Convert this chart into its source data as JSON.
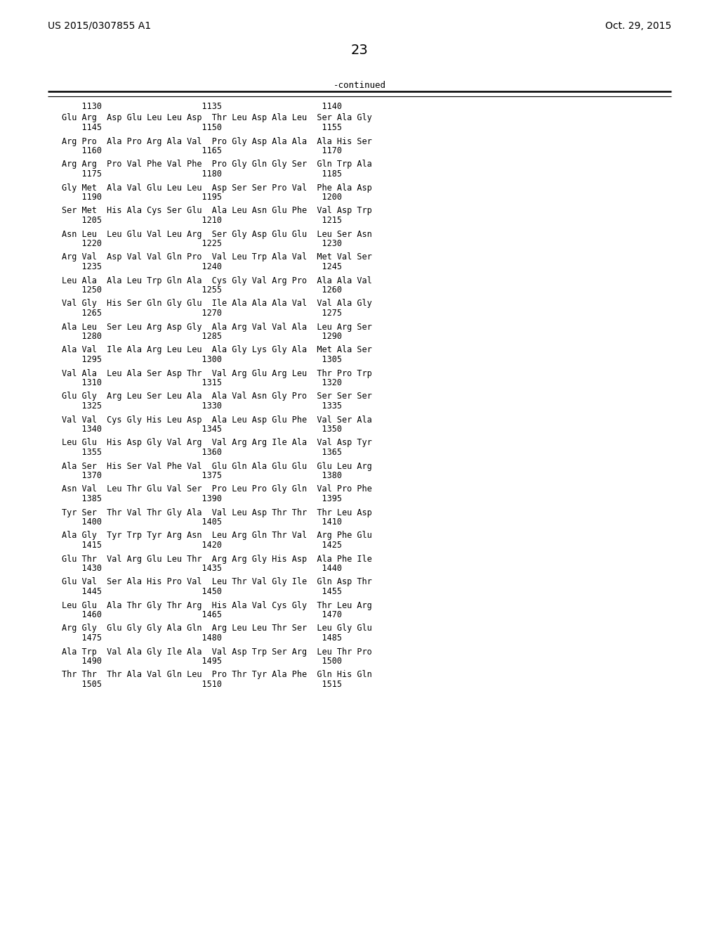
{
  "header_left": "US 2015/0307855 A1",
  "header_right": "Oct. 29, 2015",
  "page_number": "23",
  "continued_label": "-continued",
  "background_color": "#ffffff",
  "text_color": "#000000",
  "font_size": 8.5,
  "header_font_size": 10,
  "page_num_font_size": 14,
  "sequence_groups": [
    {
      "seq": "Glu Arg  Asp Glu Leu Leu Asp  Thr Leu Asp Ala Leu  Ser Ala Gly",
      "num": "    1145                    1150                    1155"
    },
    {
      "seq": "Arg Pro  Ala Pro Arg Ala Val  Pro Gly Asp Ala Ala  Ala His Ser",
      "num": "    1160                    1165                    1170"
    },
    {
      "seq": "Arg Arg  Pro Val Phe Val Phe  Pro Gly Gln Gly Ser  Gln Trp Ala",
      "num": "    1175                    1180                    1185"
    },
    {
      "seq": "Gly Met  Ala Val Glu Leu Leu  Asp Ser Ser Pro Val  Phe Ala Asp",
      "num": "    1190                    1195                    1200"
    },
    {
      "seq": "Ser Met  His Ala Cys Ser Glu  Ala Leu Asn Glu Phe  Val Asp Trp",
      "num": "    1205                    1210                    1215"
    },
    {
      "seq": "Asn Leu  Leu Glu Val Leu Arg  Ser Gly Asp Glu Glu  Leu Ser Asn",
      "num": "    1220                    1225                    1230"
    },
    {
      "seq": "Arg Val  Asp Val Val Gln Pro  Val Leu Trp Ala Val  Met Val Ser",
      "num": "    1235                    1240                    1245"
    },
    {
      "seq": "Leu Ala  Ala Leu Trp Gln Ala  Cys Gly Val Arg Pro  Ala Ala Val",
      "num": "    1250                    1255                    1260"
    },
    {
      "seq": "Val Gly  His Ser Gln Gly Glu  Ile Ala Ala Ala Val  Val Ala Gly",
      "num": "    1265                    1270                    1275"
    },
    {
      "seq": "Ala Leu  Ser Leu Arg Asp Gly  Ala Arg Val Val Ala  Leu Arg Ser",
      "num": "    1280                    1285                    1290"
    },
    {
      "seq": "Ala Val  Ile Ala Arg Leu Leu  Ala Gly Lys Gly Ala  Met Ala Ser",
      "num": "    1295                    1300                    1305"
    },
    {
      "seq": "Val Ala  Leu Ala Ser Asp Thr  Val Arg Glu Arg Leu  Thr Pro Trp",
      "num": "    1310                    1315                    1320"
    },
    {
      "seq": "Glu Gly  Arg Leu Ser Leu Ala  Ala Val Asn Gly Pro  Ser Ser Ser",
      "num": "    1325                    1330                    1335"
    },
    {
      "seq": "Val Val  Cys Gly His Leu Asp  Ala Leu Asp Glu Phe  Val Ser Ala",
      "num": "    1340                    1345                    1350"
    },
    {
      "seq": "Leu Glu  His Asp Gly Val Arg  Val Arg Arg Ile Ala  Val Asp Tyr",
      "num": "    1355                    1360                    1365"
    },
    {
      "seq": "Ala Ser  His Ser Val Phe Val  Glu Gln Ala Glu Glu  Glu Leu Arg",
      "num": "    1370                    1375                    1380"
    },
    {
      "seq": "Asn Val  Leu Thr Glu Val Ser  Pro Leu Pro Gly Gln  Val Pro Phe",
      "num": "    1385                    1390                    1395"
    },
    {
      "seq": "Tyr Ser  Thr Val Thr Gly Ala  Val Leu Asp Thr Thr  Thr Leu Asp",
      "num": "    1400                    1405                    1410"
    },
    {
      "seq": "Ala Gly  Tyr Trp Tyr Arg Asn  Leu Arg Gln Thr Val  Arg Phe Glu",
      "num": "    1415                    1420                    1425"
    },
    {
      "seq": "Glu Thr  Val Arg Glu Leu Thr  Arg Arg Gly His Asp  Ala Phe Ile",
      "num": "    1430                    1435                    1440"
    },
    {
      "seq": "Glu Val  Ser Ala His Pro Val  Leu Thr Val Gly Ile  Gln Asp Thr",
      "num": "    1445                    1450                    1455"
    },
    {
      "seq": "Leu Glu  Ala Thr Gly Thr Arg  His Ala Val Cys Gly  Thr Leu Arg",
      "num": "    1460                    1465                    1470"
    },
    {
      "seq": "Arg Gly  Glu Gly Gly Ala Gln  Arg Leu Leu Thr Ser  Leu Gly Glu",
      "num": "    1475                    1480                    1485"
    },
    {
      "seq": "Ala Trp  Val Ala Gly Ile Ala  Val Asp Trp Ser Arg  Leu Thr Pro",
      "num": "    1490                    1495                    1500"
    },
    {
      "seq": "Thr Thr  Thr Ala Val Gln Leu  Pro Thr Tyr Ala Phe  Gln His Gln",
      "num": "    1505                    1510                    1515"
    }
  ],
  "ruler_line": "    1130                    1135                    1140"
}
